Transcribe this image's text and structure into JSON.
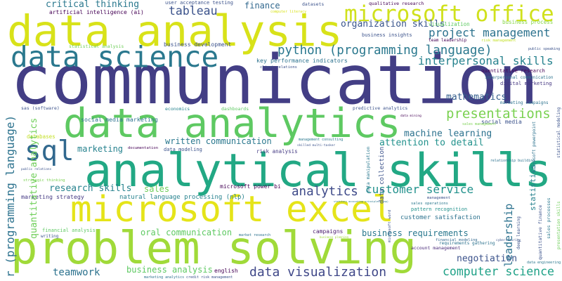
{
  "words": [
    "communication",
    "data analysis",
    "analytical skills",
    "problem solving",
    "microsoft excel",
    "data analytics",
    "data science",
    "microsoft office",
    "sql",
    "python (programming language)",
    "project management",
    "organization skills",
    "interpersonal skills",
    "tableau",
    "critical thinking",
    "finance",
    "presentations",
    "mathematics",
    "machine learning",
    "attention to detail",
    "written communication",
    "research skills",
    "analytics",
    "customer service",
    "business requirements",
    "data visualization",
    "negotiation",
    "computer science",
    "teamwork",
    "business analysis",
    "english",
    "sales",
    "marketing",
    "oral communication",
    "data modeling",
    "risk analysis",
    "microsoft power bi",
    "natural language processing (nlp)",
    "marketing strategy",
    "financial analysis",
    "writing",
    "campaigns",
    "customer satisfaction",
    "pattern recognition",
    "requirements gathering",
    "account management",
    "financial modeling",
    "management",
    "sales operations",
    "social media",
    "social media marketing",
    "key performance indicators",
    "client relations",
    "business development",
    "statistical analysis",
    "user acceptance testing",
    "artificial intelligence (ai)",
    "qualitative research",
    "datasets",
    "computer literacy",
    "visualization",
    "business process",
    "business insights",
    "team leadership",
    "risk management",
    "public speaking",
    "quantitative research",
    "interpersonal communication",
    "digital marketing",
    "marketing campaigns",
    "economics",
    "dashboards",
    "predictive analytics",
    "sas (software)",
    "databases",
    "documentation",
    "management consulting",
    "skilled multi-tasker",
    "sales management",
    "data mining",
    "relationship building",
    "strategic thinking",
    "public relations",
    "statutory accounting principles (sap)",
    "market research",
    "business planning",
    "marketing analytics",
    "credit risk management",
    "data engineering",
    "cybersecurity",
    "r (programming language)",
    "quantitative analytics",
    "data collection",
    "data manipulation",
    "microsoft word",
    "leadership",
    "statistics",
    "microsoft powerpoint",
    "quantitative finance",
    "sales processes",
    "deep learning",
    "presentation skills",
    "statistical modeling"
  ]
}
